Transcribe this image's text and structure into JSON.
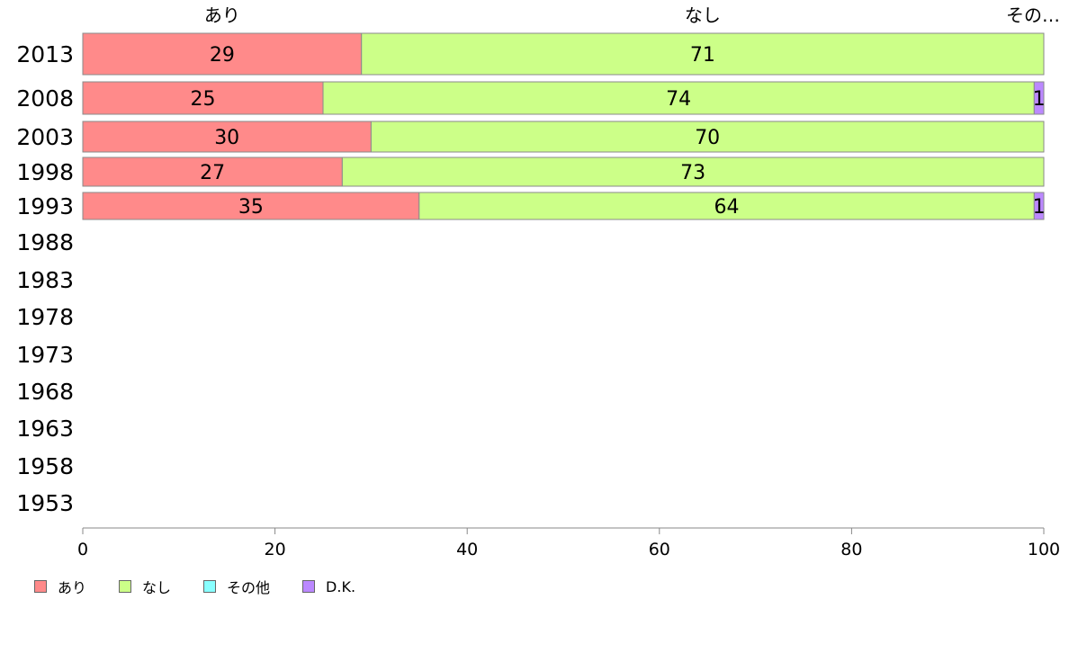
{
  "chart_data": {
    "type": "bar",
    "orientation": "horizontal",
    "stacked": true,
    "categories": [
      "2013",
      "2008",
      "2003",
      "1998",
      "1993",
      "1988",
      "1983",
      "1978",
      "1973",
      "1968",
      "1963",
      "1958",
      "1953"
    ],
    "series": [
      {
        "name": "あり",
        "color": "#ff8a8a",
        "values": [
          29,
          25,
          30,
          27,
          35,
          null,
          null,
          null,
          null,
          null,
          null,
          null,
          null
        ]
      },
      {
        "name": "なし",
        "color": "#ccff88",
        "values": [
          71,
          74,
          70,
          73,
          64,
          null,
          null,
          null,
          null,
          null,
          null,
          null,
          null
        ]
      },
      {
        "name": "その他",
        "color": "#88ffff",
        "values": [
          0,
          0,
          0,
          0,
          0,
          null,
          null,
          null,
          null,
          null,
          null,
          null,
          null
        ]
      },
      {
        "name": "D.K.",
        "color": "#bb88ff",
        "values": [
          0,
          1,
          0,
          0,
          1,
          null,
          null,
          null,
          null,
          null,
          null,
          null,
          null
        ]
      }
    ],
    "top_labels": [
      "あり",
      "なし",
      "その…"
    ],
    "xlim": [
      0,
      100
    ],
    "xticks": [
      0,
      20,
      40,
      60,
      80,
      100
    ],
    "grid": false,
    "legend_position": "bottom-left"
  }
}
